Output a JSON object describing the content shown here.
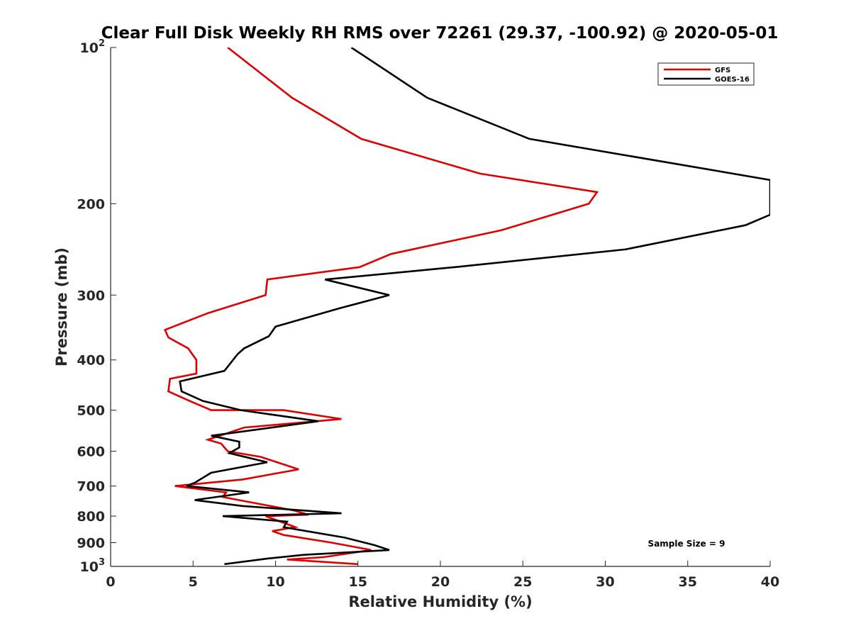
{
  "chart_data": {
    "type": "line",
    "title": "Clear Full Disk Weekly RH RMS over 72261 (29.37, -100.92) @ 2020-05-01",
    "xlabel": "Relative Humidity (%)",
    "ylabel": "Pressure (mb)",
    "xlim": [
      0,
      40
    ],
    "ylim": [
      1000,
      100
    ],
    "y_scale": "log",
    "x_ticks": [
      "0",
      "5",
      "10",
      "15",
      "20",
      "25",
      "30",
      "35",
      "40"
    ],
    "y_ticks": [
      {
        "value": 100,
        "base": "10",
        "exp": "2"
      },
      {
        "value": 200,
        "label": "200"
      },
      {
        "value": 300,
        "label": "300"
      },
      {
        "value": 400,
        "label": "400"
      },
      {
        "value": 500,
        "label": "500"
      },
      {
        "value": 600,
        "label": "600"
      },
      {
        "value": 700,
        "label": "700"
      },
      {
        "value": 800,
        "label": "800"
      },
      {
        "value": 900,
        "label": "900"
      },
      {
        "value": 1000,
        "base": "10",
        "exp": "3"
      }
    ],
    "legend_position": "top-right",
    "annotation": "Sample Size = 9",
    "series": [
      {
        "name": "GFS",
        "color": "#e00000",
        "points": [
          [
            7.1,
            100
          ],
          [
            11.0,
            125
          ],
          [
            15.2,
            150
          ],
          [
            22.4,
            175
          ],
          [
            29.5,
            190
          ],
          [
            29.0,
            200
          ],
          [
            23.7,
            225
          ],
          [
            17.0,
            250
          ],
          [
            15.1,
            265
          ],
          [
            9.5,
            280
          ],
          [
            9.4,
            300
          ],
          [
            5.9,
            325
          ],
          [
            3.3,
            350
          ],
          [
            3.5,
            362
          ],
          [
            4.7,
            380
          ],
          [
            5.2,
            400
          ],
          [
            5.2,
            425
          ],
          [
            3.6,
            435
          ],
          [
            3.5,
            460
          ],
          [
            4.8,
            480
          ],
          [
            6.1,
            500
          ],
          [
            10.5,
            500
          ],
          [
            14.0,
            520
          ],
          [
            8.1,
            540
          ],
          [
            5.9,
            570
          ],
          [
            6.7,
            580
          ],
          [
            7.1,
            600
          ],
          [
            9.1,
            615
          ],
          [
            11.4,
            650
          ],
          [
            8.0,
            680
          ],
          [
            3.9,
            700
          ],
          [
            7.0,
            720
          ],
          [
            6.8,
            735
          ],
          [
            11.1,
            780
          ],
          [
            12.0,
            795
          ],
          [
            9.4,
            800
          ],
          [
            11.2,
            840
          ],
          [
            9.8,
            855
          ],
          [
            10.5,
            870
          ],
          [
            13.4,
            900
          ],
          [
            15.8,
            930
          ],
          [
            12.9,
            960
          ],
          [
            10.7,
            970
          ],
          [
            15.0,
            990
          ]
        ]
      },
      {
        "name": "GOES-16",
        "color": "#000000",
        "points": [
          [
            14.6,
            100
          ],
          [
            19.2,
            125
          ],
          [
            25.4,
            150
          ],
          [
            40.0,
            180
          ],
          [
            40.0,
            210
          ],
          [
            38.5,
            220
          ],
          [
            31.2,
            245
          ],
          [
            20.9,
            265
          ],
          [
            13.0,
            280
          ],
          [
            16.9,
            300
          ],
          [
            13.9,
            318
          ],
          [
            10.0,
            345
          ],
          [
            9.6,
            360
          ],
          [
            8.1,
            380
          ],
          [
            7.7,
            390
          ],
          [
            6.9,
            420
          ],
          [
            4.2,
            440
          ],
          [
            4.3,
            460
          ],
          [
            5.6,
            480
          ],
          [
            7.9,
            500
          ],
          [
            12.6,
            525
          ],
          [
            6.1,
            560
          ],
          [
            7.8,
            575
          ],
          [
            7.8,
            590
          ],
          [
            7.2,
            605
          ],
          [
            9.5,
            630
          ],
          [
            6.1,
            660
          ],
          [
            5.1,
            690
          ],
          [
            4.6,
            700
          ],
          [
            8.4,
            720
          ],
          [
            5.1,
            745
          ],
          [
            8.0,
            765
          ],
          [
            14.0,
            790
          ],
          [
            6.8,
            800
          ],
          [
            10.7,
            820
          ],
          [
            10.5,
            840
          ],
          [
            11.4,
            850
          ],
          [
            14.2,
            880
          ],
          [
            16.0,
            910
          ],
          [
            16.9,
            930
          ],
          [
            11.7,
            950
          ],
          [
            9.6,
            965
          ],
          [
            6.9,
            990
          ]
        ]
      }
    ]
  }
}
